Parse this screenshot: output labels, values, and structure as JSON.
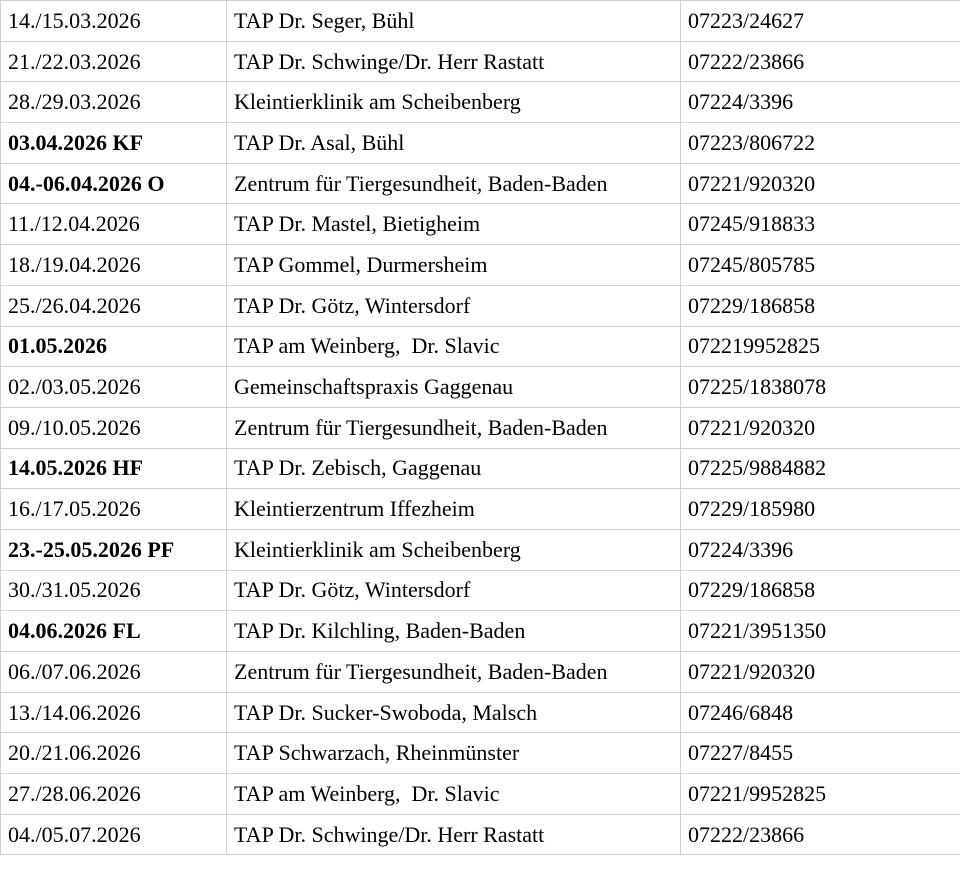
{
  "table": {
    "rows": [
      {
        "date": "14./15.03.2026",
        "practice": "TAP Dr. Seger, Bühl",
        "phone": "07223/24627",
        "bold": false
      },
      {
        "date": "21./22.03.2026",
        "practice": "TAP Dr. Schwinge/Dr. Herr Rastatt",
        "phone": "07222/23866",
        "bold": false
      },
      {
        "date": "28./29.03.2026",
        "practice": "Kleintierklinik am Scheibenberg",
        "phone": "07224/3396",
        "bold": false
      },
      {
        "date": "03.04.2026 KF",
        "practice": "TAP Dr. Asal, Bühl",
        "phone": "07223/806722",
        "bold": true
      },
      {
        "date": "04.-06.04.2026 O",
        "practice": "Zentrum für Tiergesundheit, Baden-Baden",
        "phone": "07221/920320",
        "bold": true
      },
      {
        "date": "11./12.04.2026",
        "practice": "TAP Dr. Mastel, Bietigheim",
        "phone": "07245/918833",
        "bold": false
      },
      {
        "date": "18./19.04.2026",
        "practice": "TAP Gommel, Durmersheim",
        "phone": "07245/805785",
        "bold": false
      },
      {
        "date": "25./26.04.2026",
        "practice": "TAP Dr. Götz, Wintersdorf",
        "phone": "07229/186858",
        "bold": false
      },
      {
        "date": "01.05.2026",
        "practice": "TAP am Weinberg,  Dr. Slavic",
        "phone": "072219952825",
        "bold": true
      },
      {
        "date": "02./03.05.2026",
        "practice": "Gemeinschaftspraxis Gaggenau",
        "phone": "07225/1838078",
        "bold": false
      },
      {
        "date": "09./10.05.2026",
        "practice": "Zentrum für Tiergesundheit, Baden-Baden",
        "phone": "07221/920320",
        "bold": false
      },
      {
        "date": "14.05.2026 HF",
        "practice": "TAP Dr. Zebisch, Gaggenau",
        "phone": "07225/9884882",
        "bold": true
      },
      {
        "date": "16./17.05.2026",
        "practice": "Kleintierzentrum Iffezheim",
        "phone": "07229/185980",
        "bold": false
      },
      {
        "date": "23.-25.05.2026 PF",
        "practice": "Kleintierklinik am Scheibenberg",
        "phone": "07224/3396",
        "bold": true
      },
      {
        "date": "30./31.05.2026",
        "practice": "TAP Dr. Götz, Wintersdorf",
        "phone": "07229/186858",
        "bold": false
      },
      {
        "date": "04.06.2026 FL",
        "practice": "TAP Dr. Kilchling, Baden-Baden",
        "phone": "07221/3951350",
        "bold": true
      },
      {
        "date": "06./07.06.2026",
        "practice": "Zentrum für Tiergesundheit, Baden-Baden",
        "phone": "07221/920320",
        "bold": false
      },
      {
        "date": "13./14.06.2026",
        "practice": "TAP Dr. Sucker-Swoboda, Malsch",
        "phone": "07246/6848",
        "bold": false
      },
      {
        "date": "20./21.06.2026",
        "practice": "TAP Schwarzach, Rheinmünster",
        "phone": "07227/8455",
        "bold": false
      },
      {
        "date": "27./28.06.2026",
        "practice": "TAP am Weinberg,  Dr. Slavic",
        "phone": "07221/9952825",
        "bold": false
      },
      {
        "date": "04./05.07.2026",
        "practice": "TAP Dr. Schwinge/Dr. Herr Rastatt",
        "phone": "07222/23866",
        "bold": false
      }
    ]
  }
}
